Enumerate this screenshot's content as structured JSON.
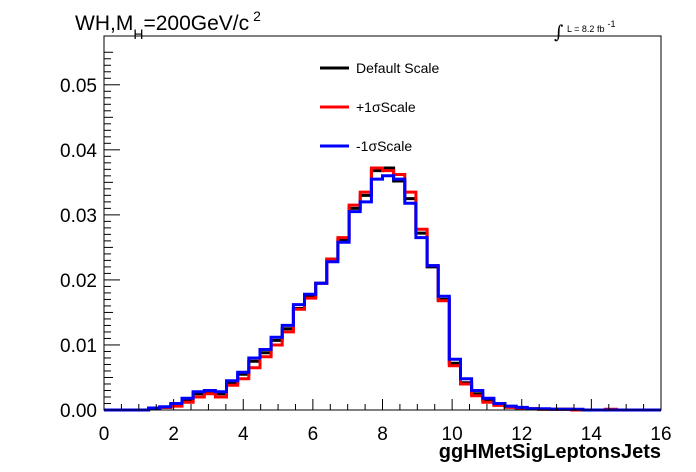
{
  "title": {
    "prefix": "WH,M",
    "subscript": "H",
    "value": "=200GeV/c",
    "superscript": "2"
  },
  "luminosity": {
    "text": "L = 8.2 fb",
    "superscript": "-1"
  },
  "chart_data": {
    "type": "line",
    "xlabel": "ggHMetSigLeptonsJets",
    "ylabel": "",
    "xlim": [
      0,
      16
    ],
    "ylim": [
      0,
      0.0575
    ],
    "x_ticks": [
      0,
      2,
      4,
      6,
      8,
      10,
      12,
      14,
      16
    ],
    "x_tick_labels": [
      "0",
      "2",
      "4",
      "6",
      "8",
      "10",
      "12",
      "14",
      "16"
    ],
    "y_ticks": [
      0,
      0.01,
      0.02,
      0.03,
      0.04,
      0.05
    ],
    "y_tick_labels": [
      "0.00",
      "0.01",
      "0.02",
      "0.03",
      "0.04",
      "0.05"
    ],
    "grid": false,
    "legend_position": "top-center",
    "bin_edges": [
      0,
      0.32,
      0.64,
      0.96,
      1.28,
      1.6,
      1.92,
      2.24,
      2.56,
      2.88,
      3.2,
      3.52,
      3.84,
      4.16,
      4.48,
      4.8,
      5.12,
      5.44,
      5.76,
      6.08,
      6.4,
      6.72,
      7.04,
      7.36,
      7.68,
      8.0,
      8.32,
      8.64,
      8.96,
      9.28,
      9.6,
      9.92,
      10.24,
      10.56,
      10.88,
      11.2,
      11.52,
      11.84,
      12.16,
      12.48,
      12.8,
      13.12,
      13.44,
      13.76,
      14.08,
      14.4,
      14.72,
      15.04,
      15.36,
      15.68,
      16.0
    ],
    "series": [
      {
        "name": "Default Scale",
        "color": "#000000",
        "values": [
          0,
          0,
          0,
          0,
          0.0002,
          0.0004,
          0.0008,
          0.0015,
          0.0025,
          0.0027,
          0.0025,
          0.0042,
          0.0055,
          0.0075,
          0.0088,
          0.0107,
          0.0125,
          0.0156,
          0.0175,
          0.0195,
          0.0232,
          0.0262,
          0.031,
          0.033,
          0.0368,
          0.0372,
          0.0352,
          0.0325,
          0.0272,
          0.022,
          0.017,
          0.0072,
          0.0042,
          0.0025,
          0.0015,
          0.0008,
          0.0005,
          0.0003,
          0.0002,
          0.0001,
          0.0001,
          0.0001,
          0,
          0,
          0,
          0,
          0,
          0,
          0,
          0
        ]
      },
      {
        "name": "+1σScale",
        "color": "#ff0000",
        "values": [
          0,
          0,
          0,
          0,
          0.0002,
          0.0004,
          0.0006,
          0.0012,
          0.002,
          0.0025,
          0.002,
          0.0038,
          0.0048,
          0.0065,
          0.0082,
          0.01,
          0.012,
          0.0155,
          0.0172,
          0.0195,
          0.0232,
          0.0265,
          0.0315,
          0.0335,
          0.0372,
          0.0368,
          0.0362,
          0.0335,
          0.0278,
          0.0222,
          0.0168,
          0.0068,
          0.004,
          0.0022,
          0.0012,
          0.0007,
          0.0004,
          0.0003,
          0.0002,
          0.0001,
          0.0001,
          0.0001,
          0,
          0,
          0,
          0.0001,
          0,
          0,
          0,
          0
        ]
      },
      {
        "name": "-1σScale",
        "color": "#0000ff",
        "values": [
          0,
          0,
          0,
          0,
          0.0003,
          0.0005,
          0.001,
          0.0018,
          0.0028,
          0.003,
          0.0028,
          0.0045,
          0.0058,
          0.008,
          0.0093,
          0.0112,
          0.013,
          0.0162,
          0.0178,
          0.0195,
          0.0228,
          0.0258,
          0.0305,
          0.032,
          0.0355,
          0.036,
          0.0355,
          0.0318,
          0.0265,
          0.0222,
          0.0175,
          0.0078,
          0.0048,
          0.003,
          0.0018,
          0.001,
          0.0006,
          0.0004,
          0.0002,
          0.0002,
          0.0001,
          0.0001,
          0.0001,
          0,
          0,
          0,
          0,
          0,
          0,
          0
        ]
      }
    ]
  }
}
